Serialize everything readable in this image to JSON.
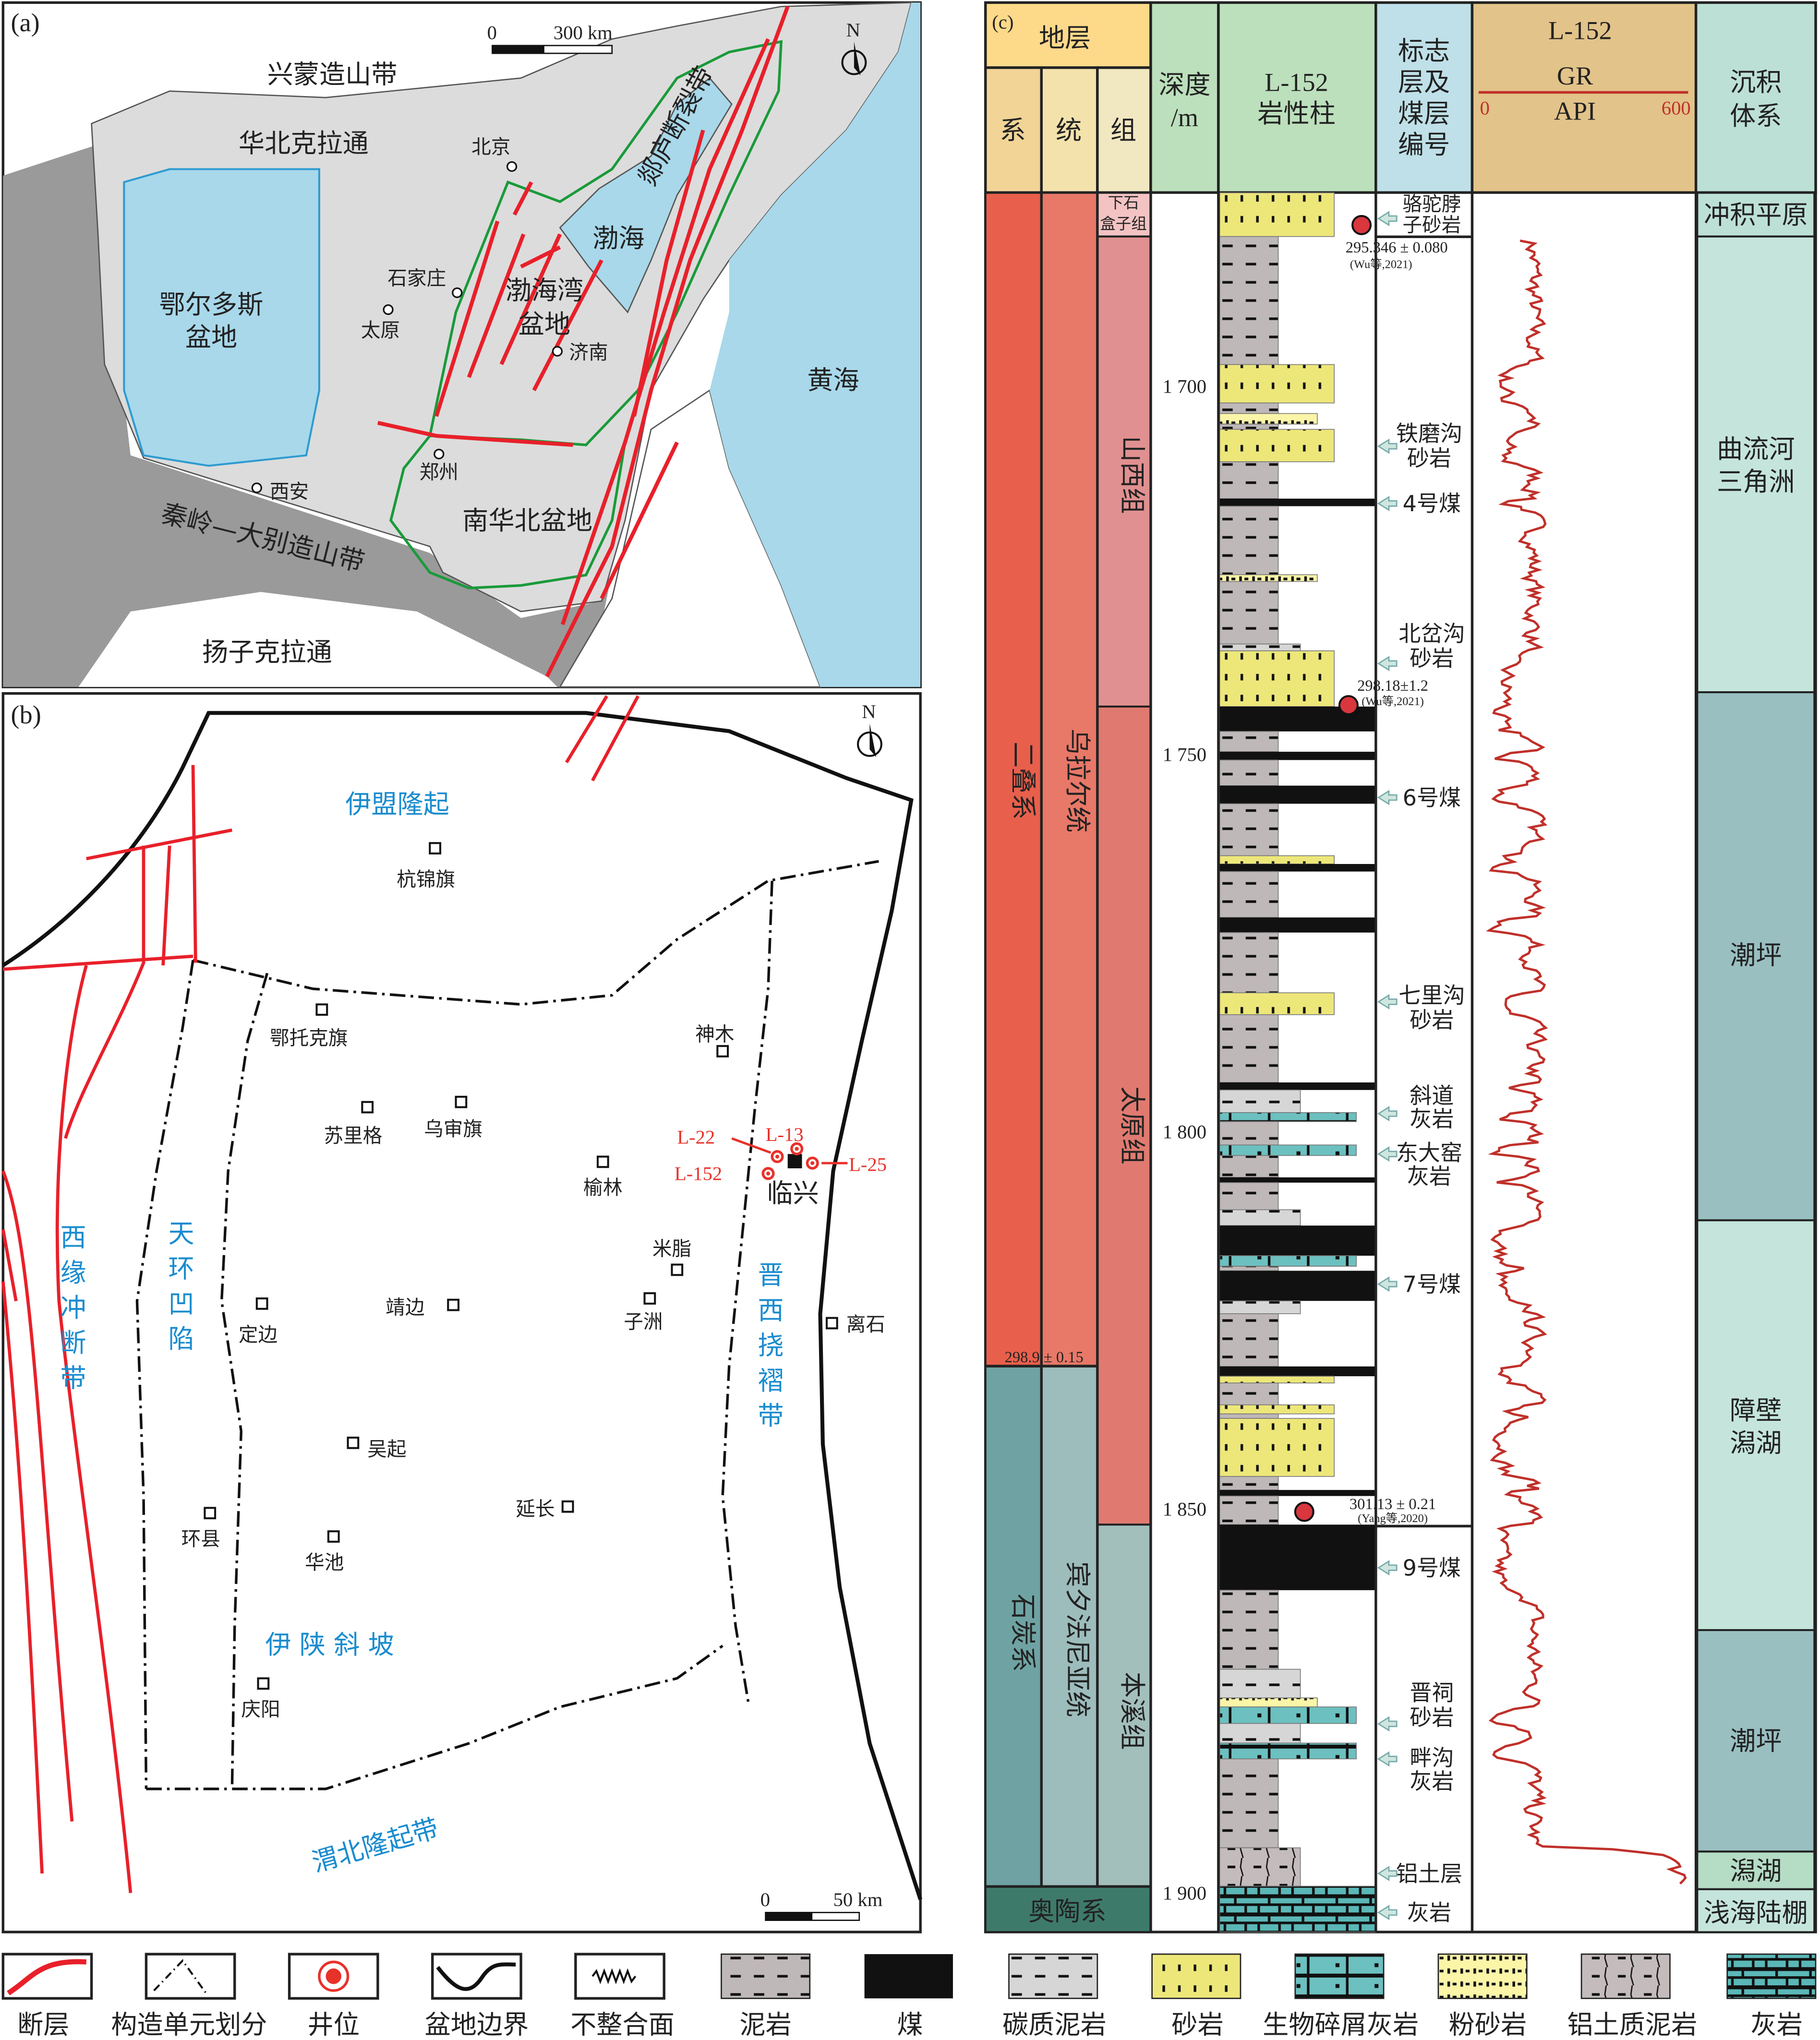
{
  "panel_a": {
    "label": "(a)",
    "scale": {
      "zero": "0",
      "end": "300 km"
    },
    "north": "N",
    "regions": {
      "xingmeng": "兴蒙造山带",
      "huabei": "华北克拉通",
      "tanlu": "郯庐断裂带",
      "bohai": "渤海",
      "bohaiwan_1": "渤海湾",
      "bohaiwan_2": "盆地",
      "ordos_1": "鄂尔多斯",
      "ordos_2": "盆地",
      "huanghai": "黄海",
      "nanhuabei": "南华北盆地",
      "qinling": "秦岭—大别造山带",
      "yangzi": "扬子克拉通"
    },
    "cities": {
      "beijing": "北京",
      "shijiazhuang": "石家庄",
      "taiyuan": "太原",
      "jinan": "济南",
      "zhengzhou": "郑州",
      "xian": "西安"
    },
    "colors": {
      "sea": "#a8d8ea",
      "craton": "#dcdcdc",
      "orogen": "#9a9a9a",
      "fault": "#e8202a",
      "basin_boundary": "#1a9a3a"
    }
  },
  "panel_b": {
    "label": "(b)",
    "north": "N",
    "scale": {
      "zero": "0",
      "end": "50 km"
    },
    "units": {
      "yimeng": "伊盟隆起",
      "tianhuan": [
        "天",
        "环",
        "凹",
        "陷"
      ],
      "xiyuan": [
        "西",
        "缘",
        "冲",
        "断",
        "带"
      ],
      "jinxi": [
        "晋",
        "西",
        "挠",
        "褶",
        "带"
      ],
      "yishan": "伊 陕 斜 坡",
      "weibei": "渭北隆起带"
    },
    "places": {
      "hangjinqi": "杭锦旗",
      "etuokeqi": "鄂托克旗",
      "shenmu": "神木",
      "sulige": "苏里格",
      "wushenqi": "乌审旗",
      "yulin": "榆林",
      "linxing": "临兴",
      "mizhi": "米脂",
      "zizhou": "子洲",
      "jingbian": "靖边",
      "dingbian": "定边",
      "lishi": "离石",
      "wuqi": "吴起",
      "yanchang": "延长",
      "huanxian": "环县",
      "huachi": "华池",
      "qingyang": "庆阳"
    },
    "wells": {
      "l22": "L-22",
      "l13": "L-13",
      "l152": "L-152",
      "l25": "L-25"
    },
    "colors": {
      "unit_label": "#1a8ccf",
      "well": "#e8312a",
      "fault": "#e8202a"
    }
  },
  "panel_c": {
    "label": "(c)",
    "header": {
      "strata": "地层",
      "system": "系",
      "series": "统",
      "formation": "组",
      "depth_1": "深度",
      "depth_2": "/m",
      "column_1": "L-152",
      "column_2": "岩性柱",
      "marker": [
        "标志",
        "层及",
        "煤层",
        "编号"
      ],
      "gr_well": "L-152",
      "gr_name": "GR",
      "gr_unit": "API",
      "gr_min": "0",
      "gr_max": "600",
      "facies_1": "沉积",
      "facies_2": "体系"
    },
    "systems": [
      {
        "name": "二叠系",
        "top": 1674.3,
        "base": 1830.1,
        "color": "#e8604c"
      },
      {
        "name": "石炭系",
        "top": 1830.1,
        "base": 1899.1,
        "color": "#6fa3a3"
      }
    ],
    "series": [
      {
        "name": "乌拉尔统",
        "top": 1674.3,
        "base": 1830.1,
        "color": "#e87868"
      },
      {
        "name": "宾夕法尼亚统",
        "top": 1830.1,
        "base": 1899.1,
        "color": "#9dbcbc"
      }
    ],
    "formations": [
      {
        "name_1": "下石",
        "name_2": "盒子组",
        "top": 1674.3,
        "base": 1680.1,
        "color": "#f3c3c3"
      },
      {
        "name": "山西组",
        "top": 1680.1,
        "base": 1742.5,
        "color": "#e09090"
      },
      {
        "name": "太原组",
        "top": 1742.5,
        "base": 1851.1,
        "color": "#e07a70"
      },
      {
        "name": "本溪组",
        "top": 1851.1,
        "base": 1899.1,
        "color": "#a3bfbc"
      }
    ],
    "ordovician": {
      "name": "奥陶系",
      "color": "#3e7a6a"
    },
    "boundary_age": "298.9 ± 0.15",
    "depth_ticks": [
      "1 700",
      "1 750",
      "1 800",
      "1 850",
      "1 900"
    ],
    "lithology": [
      {
        "top": 1674.3,
        "base": 1680.1,
        "type": "sandstone"
      },
      {
        "top": 1680.1,
        "base": 1697.1,
        "type": "mudstone"
      },
      {
        "top": 1697.1,
        "base": 1702.2,
        "type": "sandstone"
      },
      {
        "top": 1702.2,
        "base": 1703.6,
        "type": "mudstone"
      },
      {
        "top": 1703.6,
        "base": 1705.0,
        "type": "siltstone"
      },
      {
        "top": 1705.0,
        "base": 1705.7,
        "type": "mudstone"
      },
      {
        "top": 1705.7,
        "base": 1710.0,
        "type": "sandstone"
      },
      {
        "top": 1710.0,
        "base": 1714.9,
        "type": "mudstone"
      },
      {
        "top": 1714.9,
        "base": 1715.9,
        "type": "coal"
      },
      {
        "top": 1715.9,
        "base": 1725.0,
        "type": "mudstone"
      },
      {
        "top": 1725.0,
        "base": 1725.9,
        "type": "siltstone"
      },
      {
        "top": 1725.9,
        "base": 1734.2,
        "type": "mudstone"
      },
      {
        "top": 1734.2,
        "base": 1735.1,
        "type": "carbonaceous_mudstone"
      },
      {
        "top": 1735.1,
        "base": 1742.5,
        "type": "sandstone"
      },
      {
        "top": 1742.5,
        "base": 1745.8,
        "type": "coal"
      },
      {
        "top": 1745.8,
        "base": 1748.5,
        "type": "mudstone"
      },
      {
        "top": 1748.5,
        "base": 1749.6,
        "type": "coal"
      },
      {
        "top": 1749.6,
        "base": 1753.0,
        "type": "mudstone"
      },
      {
        "top": 1753.0,
        "base": 1755.4,
        "type": "coal"
      },
      {
        "top": 1755.4,
        "base": 1762.3,
        "type": "mudstone"
      },
      {
        "top": 1762.3,
        "base": 1763.4,
        "type": "sandstone"
      },
      {
        "top": 1763.4,
        "base": 1764.4,
        "type": "coal"
      },
      {
        "top": 1764.4,
        "base": 1770.5,
        "type": "mudstone"
      },
      {
        "top": 1770.5,
        "base": 1772.5,
        "type": "coal"
      },
      {
        "top": 1772.5,
        "base": 1780.5,
        "type": "mudstone"
      },
      {
        "top": 1780.5,
        "base": 1783.4,
        "type": "sandstone"
      },
      {
        "top": 1783.4,
        "base": 1792.4,
        "type": "mudstone"
      },
      {
        "top": 1792.4,
        "base": 1793.4,
        "type": "coal"
      },
      {
        "top": 1793.4,
        "base": 1796.4,
        "type": "carbonaceous_mudstone"
      },
      {
        "top": 1796.4,
        "base": 1797.6,
        "type": "bioclastic_limestone"
      },
      {
        "top": 1797.6,
        "base": 1800.7,
        "type": "mudstone"
      },
      {
        "top": 1800.7,
        "base": 1802.1,
        "type": "bioclastic_limestone"
      },
      {
        "top": 1802.1,
        "base": 1805.0,
        "type": "mudstone"
      },
      {
        "top": 1805.0,
        "base": 1805.7,
        "type": "coal"
      },
      {
        "top": 1805.7,
        "base": 1809.3,
        "type": "mudstone"
      },
      {
        "top": 1809.3,
        "base": 1811.4,
        "type": "carbonaceous_mudstone"
      },
      {
        "top": 1811.4,
        "base": 1815.4,
        "type": "coal"
      },
      {
        "top": 1815.4,
        "base": 1816.8,
        "type": "bioclastic_limestone"
      },
      {
        "top": 1816.8,
        "base": 1817.4,
        "type": "mudstone"
      },
      {
        "top": 1817.4,
        "base": 1821.4,
        "type": "coal"
      },
      {
        "top": 1821.4,
        "base": 1823.1,
        "type": "carbonaceous_mudstone"
      },
      {
        "top": 1823.1,
        "base": 1830.1,
        "type": "mudstone"
      },
      {
        "top": 1830.1,
        "base": 1831.4,
        "type": "coal"
      },
      {
        "top": 1831.4,
        "base": 1832.3,
        "type": "sandstone"
      },
      {
        "top": 1832.3,
        "base": 1835.2,
        "type": "mudstone"
      },
      {
        "top": 1835.2,
        "base": 1836.4,
        "type": "sandstone"
      },
      {
        "top": 1836.4,
        "base": 1837.0,
        "type": "mudstone"
      },
      {
        "top": 1837.0,
        "base": 1844.7,
        "type": "sandstone"
      },
      {
        "top": 1844.7,
        "base": 1846.5,
        "type": "mudstone"
      },
      {
        "top": 1846.5,
        "base": 1847.3,
        "type": "coal"
      },
      {
        "top": 1847.3,
        "base": 1851.1,
        "type": "mudstone"
      },
      {
        "top": 1851.1,
        "base": 1859.8,
        "type": "coal"
      },
      {
        "top": 1859.8,
        "base": 1870.3,
        "type": "mudstone"
      },
      {
        "top": 1870.3,
        "base": 1874.1,
        "type": "carbonaceous_mudstone"
      },
      {
        "top": 1874.1,
        "base": 1875.3,
        "type": "siltstone"
      },
      {
        "top": 1875.3,
        "base": 1877.5,
        "type": "bioclastic_limestone"
      },
      {
        "top": 1877.5,
        "base": 1880.1,
        "type": "carbonaceous_mudstone"
      },
      {
        "top": 1880.1,
        "base": 1882.2,
        "type": "bioclastic_limestone"
      },
      {
        "top": 1882.2,
        "base": 1894.0,
        "type": "mudstone"
      },
      {
        "top": 1894.0,
        "base": 1899.1,
        "type": "bauxitic_mudstone"
      },
      {
        "top": 1899.1,
        "base": 1905.2,
        "type": "limestone"
      }
    ],
    "markers": [
      {
        "line_1": "骆驼脖",
        "line_2": "子砂岩"
      },
      {
        "line_1": "铁磨沟",
        "line_2": "砂岩"
      },
      {
        "line_1": "4号煤"
      },
      {
        "line_1": "北岔沟",
        "line_2": "砂岩"
      },
      {
        "line_1": "6号煤"
      },
      {
        "line_1": "七里沟",
        "line_2": "砂岩"
      },
      {
        "line_1": "斜道",
        "line_2": "灰岩"
      },
      {
        "line_1": "东大窑",
        "line_2": "灰岩"
      },
      {
        "line_1": "7号煤"
      },
      {
        "line_1": "9号煤"
      },
      {
        "line_1": "晋祠",
        "line_2": "砂岩"
      },
      {
        "line_1": "畔沟",
        "line_2": "灰岩"
      },
      {
        "line_1": "铝土层"
      },
      {
        "line_1": "灰岩"
      }
    ],
    "ages": [
      {
        "value": "295.346 ± 0.080",
        "source": "(Wu等,2021)"
      },
      {
        "value": "298.18±1.2",
        "source": "(Wu等,2021)"
      },
      {
        "value": "301.13 ± 0.21",
        "source": "(Yang等,2020)"
      }
    ],
    "facies": [
      {
        "name": "冲积平原",
        "top": 1674.3,
        "base": 1680.1,
        "color": "#bde0d6"
      },
      {
        "name_1": "曲流河",
        "name_2": "三角洲",
        "top": 1680.1,
        "base": 1740.6,
        "color": "#c5e5dc"
      },
      {
        "name": "潮坪",
        "top": 1740.6,
        "base": 1810.7,
        "color": "#99bfc1"
      },
      {
        "name_1": "障壁",
        "name_2": "潟湖",
        "top": 1810.7,
        "base": 1865.1,
        "color": "#c5e5dc"
      },
      {
        "name": "潮坪",
        "top": 1865.1,
        "base": 1894.5,
        "color": "#99bfc1"
      },
      {
        "name": "潟湖",
        "top": 1894.5,
        "base": 1899.5,
        "color": "#b5dcc5"
      },
      {
        "name": "浅海陆棚",
        "top": 1899.5,
        "base": 1905.2,
        "color": "#c5e5dc"
      }
    ],
    "gr_color": "#c0302a"
  },
  "legend": [
    {
      "label": "断层",
      "icon": "fault"
    },
    {
      "label": "构造单元划分",
      "icon": "tectonic-unit-boundary"
    },
    {
      "label": "井位",
      "icon": "well"
    },
    {
      "label": "盆地边界",
      "icon": "basin-boundary"
    },
    {
      "label": "不整合面",
      "icon": "unconformity"
    },
    {
      "label": "泥岩",
      "icon": "mudstone"
    },
    {
      "label": "煤",
      "icon": "coal"
    },
    {
      "label": "碳质泥岩",
      "icon": "carbonaceous-mudstone"
    },
    {
      "label": "砂岩",
      "icon": "sandstone"
    },
    {
      "label": "生物碎屑灰岩",
      "icon": "bioclastic-limestone"
    },
    {
      "label": "粉砂岩",
      "icon": "siltstone"
    },
    {
      "label": "铝土质泥岩",
      "icon": "bauxitic-mudstone"
    },
    {
      "label": "灰岩",
      "icon": "limestone"
    }
  ]
}
